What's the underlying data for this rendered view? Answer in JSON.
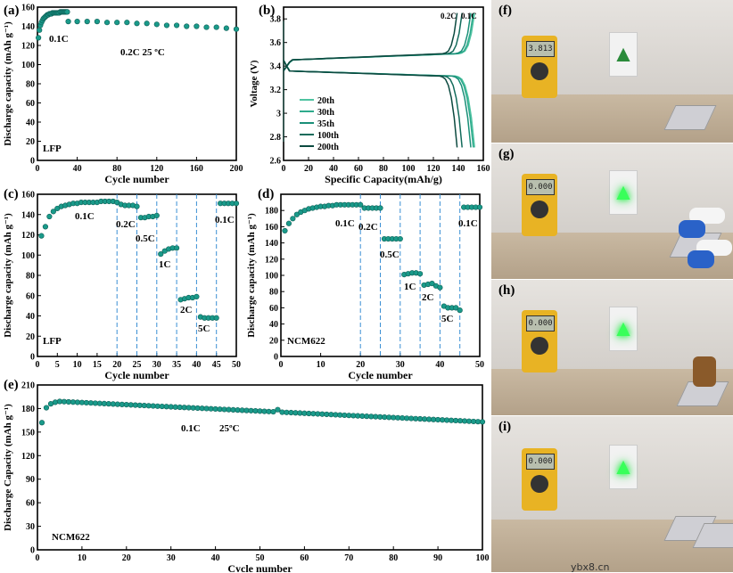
{
  "chart_data": [
    {
      "panel": "(a)",
      "type": "scatter",
      "xlabel": "Cycle number",
      "ylabel": "Discharge capacity (mAh g⁻¹)",
      "xlim": [
        0,
        200
      ],
      "ylim": [
        0,
        160
      ],
      "xticks": [
        0,
        40,
        80,
        120,
        160,
        200
      ],
      "yticks": [
        0,
        20,
        40,
        60,
        80,
        100,
        120,
        140,
        160
      ],
      "annotations": [
        "0.1C",
        "0.2C   25 ºC",
        "LFP"
      ],
      "series": [
        {
          "name": "0.1C",
          "x": [
            1,
            2,
            3,
            4,
            5,
            6,
            7,
            8,
            9,
            10,
            11,
            12,
            13,
            14,
            15,
            16,
            17,
            18,
            19,
            20,
            21,
            22,
            23,
            24,
            25,
            26,
            27,
            28,
            29,
            30
          ],
          "y": [
            128,
            136,
            141,
            144,
            146,
            148,
            149,
            150,
            151,
            152,
            152,
            153,
            153,
            153,
            154,
            154,
            154,
            154,
            154,
            154,
            154,
            154,
            155,
            155,
            155,
            155,
            155,
            155,
            155,
            155
          ]
        },
        {
          "name": "0.2C",
          "x": [
            31,
            40,
            50,
            60,
            70,
            80,
            90,
            100,
            110,
            120,
            130,
            140,
            150,
            160,
            170,
            180,
            190,
            200
          ],
          "y": [
            145,
            145,
            145,
            145,
            144,
            144,
            144,
            143,
            143,
            142,
            141,
            141,
            140,
            140,
            139,
            139,
            138,
            137
          ]
        }
      ]
    },
    {
      "panel": "(b)",
      "type": "line",
      "xlabel": "Specific Capacity(mAh/g)",
      "ylabel": "Voltage (V)",
      "xlim": [
        0,
        160
      ],
      "ylim": [
        2.6,
        3.9
      ],
      "xticks": [
        0,
        20,
        40,
        60,
        80,
        100,
        120,
        140,
        160
      ],
      "yticks": [
        2.6,
        2.8,
        3.0,
        3.2,
        3.4,
        3.6,
        3.8
      ],
      "annotations": [
        "0.2C",
        "0.1C"
      ],
      "legend": [
        "20th",
        "30th",
        "35th",
        "100th",
        "200th"
      ],
      "series_colors": [
        "#4fc3a1",
        "#2eaa8c",
        "#1a8f78",
        "#126b5b",
        "#0c4a40"
      ],
      "max_capacity": [
        153,
        152,
        150,
        143,
        139
      ]
    },
    {
      "panel": "(c)",
      "type": "scatter",
      "xlabel": "Cycle number",
      "ylabel": "Discharge capacity (mAh g⁻¹)",
      "xlim": [
        0,
        50
      ],
      "ylim": [
        0,
        160
      ],
      "xticks": [
        0,
        5,
        10,
        15,
        20,
        25,
        30,
        35,
        40,
        45,
        50
      ],
      "yticks": [
        0,
        20,
        40,
        60,
        80,
        100,
        120,
        140,
        160
      ],
      "annotations": [
        "0.1C",
        "0.2C",
        "0.5C",
        "1C",
        "2C",
        "5C",
        "0.1C",
        "LFP"
      ],
      "rate_boundaries": [
        20,
        25,
        30,
        35,
        40,
        45
      ],
      "x": [
        1,
        2,
        3,
        4,
        5,
        6,
        7,
        8,
        9,
        10,
        11,
        12,
        13,
        14,
        15,
        16,
        17,
        18,
        19,
        20,
        21,
        22,
        23,
        24,
        25,
        26,
        27,
        28,
        29,
        30,
        31,
        32,
        33,
        34,
        35,
        36,
        37,
        38,
        39,
        40,
        41,
        42,
        43,
        44,
        45,
        46,
        47,
        48,
        49,
        50
      ],
      "y": [
        119,
        128,
        138,
        143,
        146,
        148,
        149,
        150,
        151,
        151,
        152,
        152,
        152,
        152,
        152,
        153,
        153,
        153,
        153,
        152,
        150,
        149,
        149,
        149,
        148,
        137,
        137,
        138,
        138,
        139,
        101,
        104,
        106,
        107,
        107,
        56,
        57,
        58,
        58,
        59,
        39,
        38,
        38,
        38,
        38,
        151,
        151,
        151,
        151,
        151
      ]
    },
    {
      "panel": "(d)",
      "type": "scatter",
      "xlabel": "Cycle number",
      "ylabel": "Discharge capacity (mAh g⁻¹)",
      "xlim": [
        0,
        50
      ],
      "ylim": [
        0,
        200
      ],
      "xticks": [
        0,
        10,
        20,
        30,
        40,
        50
      ],
      "yticks": [
        0,
        20,
        40,
        60,
        80,
        100,
        120,
        140,
        160,
        180
      ],
      "annotations": [
        "0.1C",
        "0.2C",
        "0.5C",
        "1C",
        "2C",
        "5C",
        "0.1C",
        "NCM622"
      ],
      "rate_boundaries": [
        20,
        25,
        30,
        35,
        40,
        45
      ],
      "x": [
        1,
        2,
        3,
        4,
        5,
        6,
        7,
        8,
        9,
        10,
        11,
        12,
        13,
        14,
        15,
        16,
        17,
        18,
        19,
        20,
        21,
        22,
        23,
        24,
        25,
        26,
        27,
        28,
        29,
        30,
        31,
        32,
        33,
        34,
        35,
        36,
        37,
        38,
        39,
        40,
        41,
        42,
        43,
        44,
        45,
        46,
        47,
        48,
        49,
        50
      ],
      "y": [
        155,
        164,
        170,
        175,
        178,
        180,
        182,
        183,
        184,
        185,
        185,
        186,
        186,
        187,
        187,
        187,
        187,
        187,
        187,
        187,
        183,
        183,
        183,
        183,
        183,
        145,
        145,
        145,
        145,
        145,
        101,
        102,
        103,
        103,
        102,
        88,
        89,
        90,
        87,
        85,
        62,
        60,
        60,
        60,
        57,
        184,
        184,
        184,
        184,
        184
      ]
    },
    {
      "panel": "(e)",
      "type": "scatter",
      "xlabel": "Cycle number",
      "ylabel": "Discharge Capacity (mAh g⁻¹)",
      "xlim": [
        0,
        100
      ],
      "ylim": [
        0,
        210
      ],
      "xticks": [
        0,
        10,
        20,
        30,
        40,
        50,
        60,
        70,
        80,
        90,
        100
      ],
      "yticks": [
        0,
        30,
        60,
        90,
        120,
        150,
        180,
        210
      ],
      "annotations": [
        "0.1C",
        "25ºC",
        "NCM622"
      ],
      "x_start": 1,
      "x_end": 100,
      "y_first": [
        162,
        181,
        186,
        188
      ],
      "y_start": 189,
      "y_end": 163
    }
  ],
  "photos": {
    "panels": [
      "(f)",
      "(g)",
      "(h)",
      "(i)"
    ],
    "meter_readings": [
      "3.813",
      "0.000",
      "0.000",
      "0.000"
    ],
    "watermark": "ybx8.cn"
  },
  "colors": {
    "marker": "#1a9a8a",
    "marker_edge": "#0d5e55",
    "dashed": "#3a8fd4"
  }
}
